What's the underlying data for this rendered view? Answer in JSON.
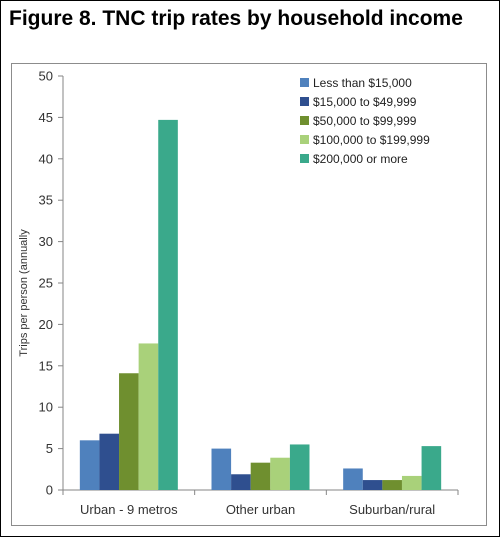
{
  "figure": {
    "title": "Figure 8. TNC trip rates by household income"
  },
  "chart_data": {
    "type": "bar",
    "title": "Figure 8. TNC trip rates by household income",
    "xlabel": "",
    "ylabel": "Trips per person (annually",
    "ylim": [
      0,
      50
    ],
    "yticks": [
      0,
      5,
      10,
      15,
      20,
      25,
      30,
      35,
      40,
      45,
      50
    ],
    "grid": false,
    "legend_position": "top-right",
    "categories": [
      "Urban - 9 metros",
      "Other urban",
      "Suburban/rural"
    ],
    "series": [
      {
        "name": "Less than $15,000",
        "color": "#4f81bd",
        "values": [
          6.0,
          5.0,
          2.6
        ]
      },
      {
        "name": "$15,000 to $49,999",
        "color": "#2f4f8f",
        "values": [
          6.8,
          1.9,
          1.2
        ]
      },
      {
        "name": "$50,000 to $99,999",
        "color": "#6f8f2f",
        "values": [
          14.1,
          3.3,
          1.2
        ]
      },
      {
        "name": "$100,000 to $199,999",
        "color": "#a9d17a",
        "values": [
          17.7,
          3.9,
          1.7
        ]
      },
      {
        "name": "$200,000 or more",
        "color": "#3aa98b",
        "values": [
          44.7,
          5.5,
          5.3
        ]
      }
    ]
  }
}
